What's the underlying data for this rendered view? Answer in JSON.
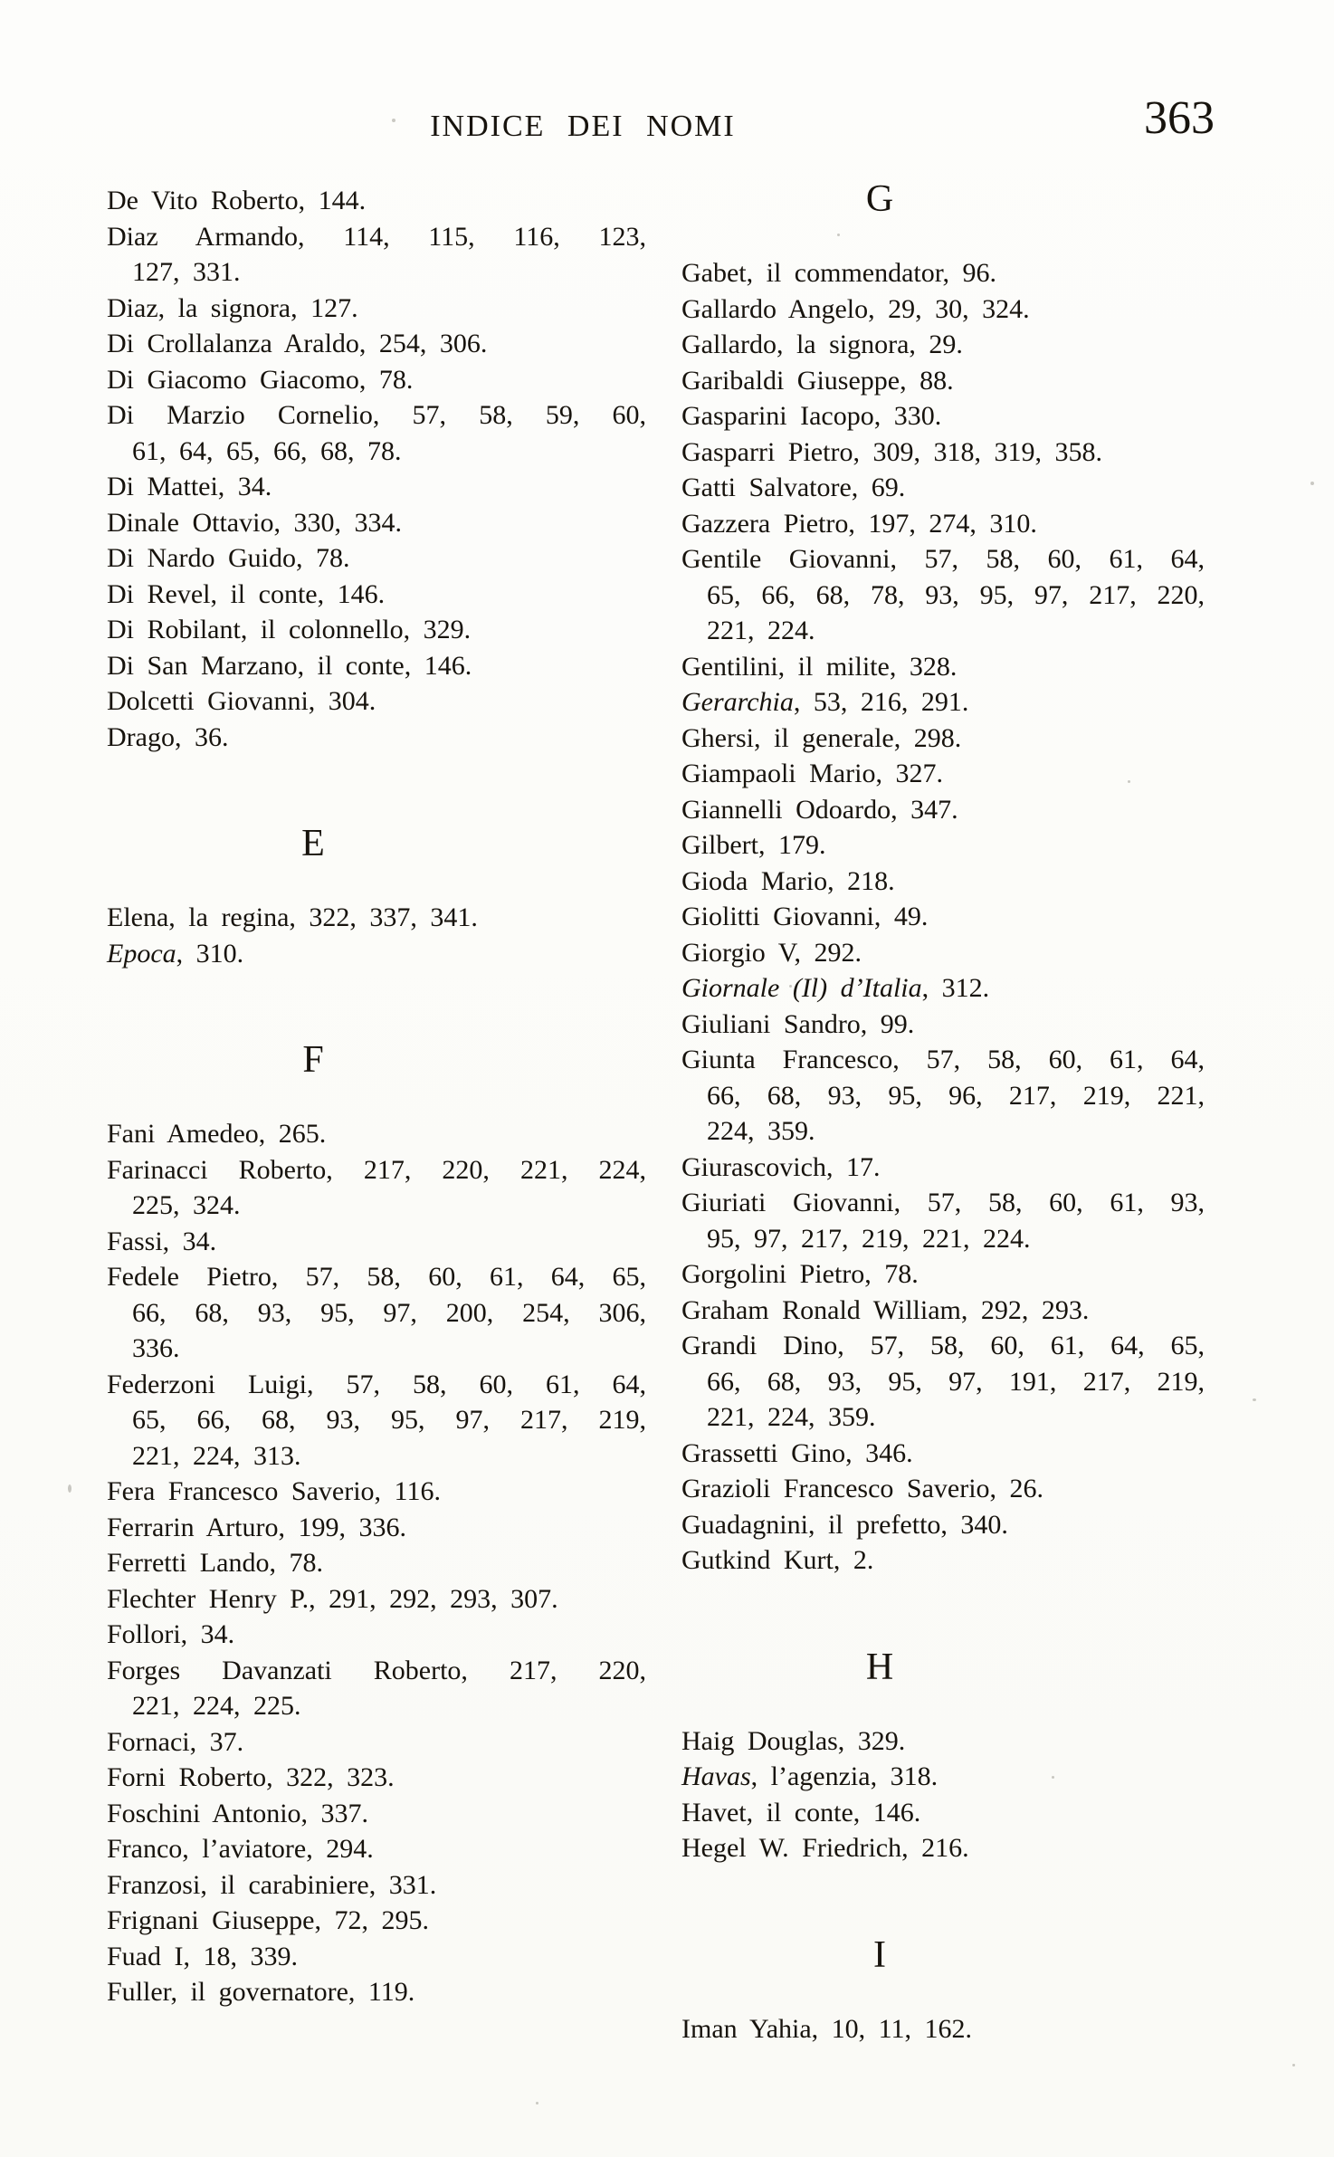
{
  "header": {
    "title": "INDICE DEI NOMI",
    "page_number": "363"
  },
  "columns": [
    {
      "side": "left",
      "blocks": [
        {
          "text": "De Vito Roberto, 144."
        },
        {
          "text": "Diaz Armando, 114, 115, 116, 123,",
          "j": true
        },
        {
          "text": "127, 331.",
          "indent": true
        },
        {
          "text": "Diaz, la signora, 127."
        },
        {
          "text": "Di Crollalanza Araldo, 254, 306."
        },
        {
          "text": "Di Giacomo Giacomo, 78."
        },
        {
          "text": "Di Marzio Cornelio, 57, 58, 59, 60,",
          "j": true
        },
        {
          "text": "61, 64, 65, 66, 68, 78.",
          "indent": true
        },
        {
          "text": "Di Mattei, 34."
        },
        {
          "text": "Dinale Ottavio, 330, 334."
        },
        {
          "text": "Di Nardo Guido, 78."
        },
        {
          "text": "Di Revel, il conte, 146."
        },
        {
          "text": "Di Robilant, il colonnello, 329."
        },
        {
          "text": "Di San Marzano, il conte, 146."
        },
        {
          "text": "Dolcetti Giovanni, 304."
        },
        {
          "text": "Drago, 36."
        },
        {
          "h": "E"
        },
        {
          "text": "Elena, la regina, 322, 337, 341."
        },
        {
          "it": "Epoca",
          "text": ", 310."
        },
        {
          "h": "F"
        },
        {
          "text": "Fani Amedeo, 265."
        },
        {
          "text": "Farinacci Roberto, 217, 220, 221, 224,",
          "j": true
        },
        {
          "text": "225, 324.",
          "indent": true
        },
        {
          "text": "Fassi, 34."
        },
        {
          "text": "Fedele Pietro, 57, 58, 60, 61, 64, 65,",
          "j": true
        },
        {
          "text": "66, 68, 93, 95, 97, 200, 254, 306,",
          "indent": true,
          "j": true
        },
        {
          "text": "336.",
          "indent": true
        },
        {
          "text": "Federzoni Luigi, 57, 58, 60, 61, 64,",
          "j": true
        },
        {
          "text": "65, 66, 68, 93, 95, 97, 217, 219,",
          "indent": true,
          "j": true
        },
        {
          "text": "221, 224, 313.",
          "indent": true
        },
        {
          "text": "Fera Francesco Saverio, 116."
        },
        {
          "text": "Ferrarin Arturo, 199, 336."
        },
        {
          "text": "Ferretti Lando, 78."
        },
        {
          "text": "Flechter Henry P., 291, 292, 293, 307."
        },
        {
          "text": "Follori, 34."
        },
        {
          "text": "Forges Davanzati Roberto, 217, 220,",
          "j": true
        },
        {
          "text": "221, 224, 225.",
          "indent": true
        },
        {
          "text": "Fornaci, 37."
        },
        {
          "text": "Forni Roberto, 322, 323."
        },
        {
          "text": "Foschini Antonio, 337."
        },
        {
          "text": "Franco, l’aviatore, 294."
        },
        {
          "text": "Franzosi, il carabiniere, 331."
        },
        {
          "text": "Frignani Giuseppe, 72, 295."
        },
        {
          "text": "Fuad I, 18, 339."
        },
        {
          "text": "Fuller, il governatore, 119."
        }
      ]
    },
    {
      "side": "right",
      "blocks": [
        {
          "h": "G"
        },
        {
          "text": "Gabet, il commendator, 96."
        },
        {
          "text": "Gallardo Angelo, 29, 30, 324."
        },
        {
          "text": "Gallardo, la signora, 29."
        },
        {
          "text": "Garibaldi Giuseppe, 88."
        },
        {
          "text": "Gasparini Iacopo, 330."
        },
        {
          "text": "Gasparri Pietro, 309, 318, 319, 358."
        },
        {
          "text": "Gatti Salvatore, 69."
        },
        {
          "text": "Gazzera Pietro, 197, 274, 310."
        },
        {
          "text": "Gentile Giovanni, 57, 58, 60, 61, 64,",
          "j": true
        },
        {
          "text": "65, 66, 68, 78, 93, 95, 97, 217, 220,",
          "indent": true,
          "j": true
        },
        {
          "text": "221, 224.",
          "indent": true
        },
        {
          "text": "Gentilini, il milite, 328."
        },
        {
          "it": "Gerarchia",
          "text": ", 53, 216, 291."
        },
        {
          "text": "Ghersi, il generale, 298."
        },
        {
          "text": "Giampaoli Mario, 327."
        },
        {
          "text": "Giannelli Odoardo, 347."
        },
        {
          "text": "Gilbert, 179."
        },
        {
          "text": "Gioda Mario, 218."
        },
        {
          "text": "Giolitti Giovanni, 49."
        },
        {
          "text": "Giorgio V, 292."
        },
        {
          "it": "Giornale (Il) d’Italia",
          "text": ", 312."
        },
        {
          "text": "Giuliani Sandro, 99."
        },
        {
          "text": "Giunta Francesco, 57, 58, 60, 61, 64,",
          "j": true
        },
        {
          "text": "66, 68, 93, 95, 96, 217, 219, 221,",
          "indent": true,
          "j": true
        },
        {
          "text": "224, 359.",
          "indent": true
        },
        {
          "text": "Giurascovich, 17."
        },
        {
          "text": "Giuriati Giovanni, 57, 58, 60, 61, 93,",
          "j": true
        },
        {
          "text": "95, 97, 217, 219, 221, 224.",
          "indent": true
        },
        {
          "text": "Gorgolini Pietro, 78."
        },
        {
          "text": "Graham Ronald William, 292, 293."
        },
        {
          "text": "Grandi Dino, 57, 58, 60, 61, 64, 65,",
          "j": true
        },
        {
          "text": "66, 68, 93, 95, 97, 191, 217, 219,",
          "indent": true,
          "j": true
        },
        {
          "text": "221, 224, 359.",
          "indent": true
        },
        {
          "text": "Grassetti Gino, 346."
        },
        {
          "text": "Grazioli Francesco Saverio, 26."
        },
        {
          "text": "Guadagnini, il prefetto, 340."
        },
        {
          "text": "Gutkind Kurt, 2."
        },
        {
          "h": "H"
        },
        {
          "text": "Haig Douglas, 329."
        },
        {
          "it": "Havas",
          "text": ", l’agenzia, 318."
        },
        {
          "text": "Havet, il conte, 146."
        },
        {
          "text": "Hegel W. Friedrich, 216."
        },
        {
          "h": "I"
        },
        {
          "text": "Iman Yahia, 10, 11, 162."
        }
      ]
    }
  ]
}
